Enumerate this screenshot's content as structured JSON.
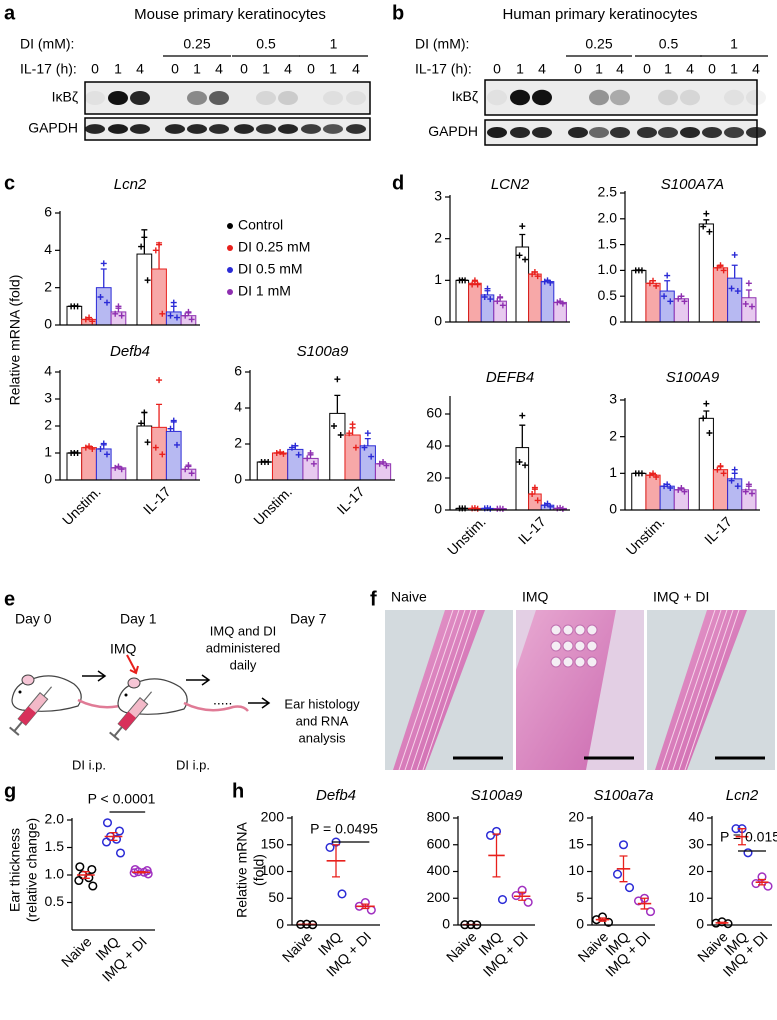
{
  "panel_labels": [
    "a",
    "b",
    "c",
    "d",
    "e",
    "f",
    "g",
    "h"
  ],
  "blots": [
    {
      "title": "Mouse primary keratinocytes",
      "dose_label": "DI (mM):",
      "doses": [
        0.25,
        0.5,
        1
      ],
      "time_label": "IL-17 (h):",
      "times": [
        0,
        1,
        4,
        0,
        1,
        4,
        0,
        1,
        4,
        0,
        1,
        4
      ],
      "proteins": [
        "IκBζ",
        "GAPDH"
      ]
    },
    {
      "title": "Human primary keratinocytes",
      "dose_label": "DI (mM):",
      "doses": [
        0.25,
        0.5,
        1
      ],
      "time_label": "IL-17 (h):",
      "times": [
        0,
        1,
        4,
        0,
        1,
        4,
        0,
        1,
        4,
        0,
        1,
        4
      ],
      "proteins": [
        "IκBζ",
        "GAPDH"
      ]
    }
  ],
  "schematic": {
    "days": [
      "Day 0",
      "Day 1",
      "Day 7"
    ],
    "treatment": "IMQ",
    "daily": [
      "IMQ and DI",
      "administered",
      "daily"
    ],
    "ellipsis": ".....",
    "readout": [
      "Ear histology",
      "and RNA",
      "analysis"
    ],
    "injection": [
      "DI i.p.",
      "DI i.p."
    ]
  },
  "histology": {
    "groups": [
      "Naive",
      "IMQ",
      "IMQ + DI"
    ]
  },
  "chart_data": [
    {
      "type": "bar",
      "title": "Lcn2",
      "ylabel": "Relative mRNA (fold)",
      "legend": true,
      "ylim": [
        0,
        6
      ],
      "yticks": [
        0,
        2,
        4,
        6
      ],
      "series": [
        {
          "name": "Control",
          "color": "#000000",
          "fill": "#ffffff",
          "values": [
            1,
            3.8
          ],
          "errors": [
            0.03,
            1.3
          ],
          "points": [
            [
              1,
              1,
              1
            ],
            [
              4.7,
              4.2,
              2.4
            ]
          ]
        },
        {
          "name": "DI 0.25 mM",
          "color": "#e8201c",
          "fill": "#f7a8a8",
          "values": [
            0.3,
            3.0
          ],
          "errors": [
            0.08,
            1.4
          ],
          "points": [
            [
              0.4,
              0.3,
              0.2
            ],
            [
              4.3,
              4.0,
              0.6
            ]
          ]
        },
        {
          "name": "DI 0.5 mM",
          "color": "#2b2bd6",
          "fill": "#b7b9f2",
          "values": [
            2.0,
            0.7
          ],
          "errors": [
            1.0,
            0.3
          ],
          "points": [
            [
              3.3,
              1.5,
              1.2
            ],
            [
              1.2,
              0.5,
              0.4
            ]
          ]
        },
        {
          "name": "DI 1 mM",
          "color": "#8e2fb0",
          "fill": "#e7c9ef",
          "values": [
            0.7,
            0.5
          ],
          "errors": [
            0.2,
            0.15
          ],
          "points": [
            [
              1.0,
              0.6,
              0.5
            ],
            [
              0.7,
              0.5,
              0.3
            ]
          ]
        }
      ]
    },
    {
      "type": "bar",
      "title": "Defb4",
      "categories": [
        "Unstim.",
        "IL-17"
      ],
      "ylim": [
        0,
        4
      ],
      "yticks": [
        0,
        1,
        2,
        3,
        4
      ],
      "series": [
        {
          "color": "#000000",
          "fill": "#ffffff",
          "values": [
            1,
            2.0
          ],
          "errors": [
            0.03,
            0.5
          ],
          "points": [
            [
              1,
              1,
              1
            ],
            [
              2.5,
              2.1,
              1.4
            ]
          ]
        },
        {
          "color": "#e8201c",
          "fill": "#f7a8a8",
          "values": [
            1.2,
            1.95
          ],
          "errors": [
            0.05,
            0.85
          ],
          "points": [
            [
              1.25,
              1.2,
              1.15
            ],
            [
              3.7,
              1.2,
              0.95
            ]
          ]
        },
        {
          "color": "#2b2bd6",
          "fill": "#b7b9f2",
          "values": [
            1.15,
            1.8
          ],
          "errors": [
            0.15,
            0.35
          ],
          "points": [
            [
              1.35,
              1.15,
              0.95
            ],
            [
              2.2,
              1.9,
              1.3
            ]
          ]
        },
        {
          "color": "#8e2fb0",
          "fill": "#e7c9ef",
          "values": [
            0.45,
            0.4
          ],
          "errors": [
            0.05,
            0.1
          ],
          "points": [
            [
              0.5,
              0.45,
              0.4
            ],
            [
              0.55,
              0.4,
              0.25
            ]
          ]
        }
      ]
    },
    {
      "type": "bar",
      "title": "S100a9",
      "categories": [
        "Unstim.",
        "IL-17"
      ],
      "ylim": [
        0,
        6
      ],
      "yticks": [
        0,
        2,
        4,
        6
      ],
      "series": [
        {
          "color": "#000000",
          "fill": "#ffffff",
          "values": [
            1,
            3.7
          ],
          "errors": [
            0.03,
            1.0
          ],
          "points": [
            [
              1,
              1,
              1
            ],
            [
              5.6,
              3.0,
              2.5
            ]
          ]
        },
        {
          "color": "#e8201c",
          "fill": "#f7a8a8",
          "values": [
            1.5,
            2.5
          ],
          "errors": [
            0.05,
            0.4
          ],
          "points": [
            [
              1.55,
              1.5,
              1.45
            ],
            [
              3.1,
              2.6,
              1.8
            ]
          ]
        },
        {
          "color": "#2b2bd6",
          "fill": "#b7b9f2",
          "values": [
            1.7,
            1.9
          ],
          "errors": [
            0.2,
            0.4
          ],
          "points": [
            [
              1.9,
              1.8,
              1.4
            ],
            [
              2.6,
              1.8,
              1.3
            ]
          ]
        },
        {
          "color": "#8e2fb0",
          "fill": "#e7c9ef",
          "values": [
            1.2,
            0.9
          ],
          "errors": [
            0.2,
            0.1
          ],
          "points": [
            [
              1.5,
              1.2,
              0.9
            ],
            [
              1.0,
              0.9,
              0.8
            ]
          ]
        }
      ]
    },
    {
      "type": "bar",
      "title": "LCN2",
      "ylim": [
        0,
        3
      ],
      "yticks": [
        0,
        1,
        2,
        3
      ],
      "series": [
        {
          "color": "#000000",
          "fill": "#ffffff",
          "values": [
            1,
            1.8
          ],
          "errors": [
            0.02,
            0.3
          ],
          "points": [
            [
              1,
              1,
              1
            ],
            [
              2.3,
              1.6,
              1.5
            ]
          ]
        },
        {
          "color": "#e8201c",
          "fill": "#f7a8a8",
          "values": [
            0.93,
            1.15
          ],
          "errors": [
            0.05,
            0.05
          ],
          "points": [
            [
              1.0,
              0.9,
              0.9
            ],
            [
              1.2,
              1.15,
              1.1
            ]
          ]
        },
        {
          "color": "#2b2bd6",
          "fill": "#b7b9f2",
          "values": [
            0.65,
            0.97
          ],
          "errors": [
            0.1,
            0.03
          ],
          "points": [
            [
              0.8,
              0.6,
              0.55
            ],
            [
              1.0,
              0.97,
              0.94
            ]
          ]
        },
        {
          "color": "#8e2fb0",
          "fill": "#e7c9ef",
          "values": [
            0.5,
            0.47
          ],
          "errors": [
            0.08,
            0.03
          ],
          "points": [
            [
              0.6,
              0.5,
              0.4
            ],
            [
              0.5,
              0.47,
              0.44
            ]
          ]
        }
      ]
    },
    {
      "type": "bar",
      "title": "S100A7A",
      "ylim": [
        0,
        2.5
      ],
      "yticks": [
        0,
        0.5,
        {
          "value": 1,
          "label": "1.0"
        },
        1.5,
        {
          "value": 2,
          "label": "2.0"
        },
        2.5
      ],
      "series": [
        {
          "color": "#000000",
          "fill": "#ffffff",
          "values": [
            1,
            1.9
          ],
          "errors": [
            0.01,
            0.08
          ],
          "points": [
            [
              1,
              1,
              1
            ],
            [
              2.1,
              1.85,
              1.75
            ]
          ]
        },
        {
          "color": "#e8201c",
          "fill": "#f7a8a8",
          "values": [
            0.75,
            1.05
          ],
          "errors": [
            0.05,
            0.03
          ],
          "points": [
            [
              0.8,
              0.75,
              0.7
            ],
            [
              1.1,
              1.05,
              1.0
            ]
          ]
        },
        {
          "color": "#2b2bd6",
          "fill": "#b7b9f2",
          "values": [
            0.6,
            0.85
          ],
          "errors": [
            0.2,
            0.25
          ],
          "points": [
            [
              0.9,
              0.5,
              0.4
            ],
            [
              1.3,
              0.65,
              0.6
            ]
          ]
        },
        {
          "color": "#8e2fb0",
          "fill": "#e7c9ef",
          "values": [
            0.45,
            0.47
          ],
          "errors": [
            0.05,
            0.15
          ],
          "points": [
            [
              0.5,
              0.45,
              0.4
            ],
            [
              0.75,
              0.35,
              0.3
            ]
          ]
        }
      ]
    },
    {
      "type": "bar",
      "title": "DEFB4",
      "categories": [
        "Unstim.",
        "IL-17"
      ],
      "ylim": [
        0,
        70
      ],
      "yticks": [
        0,
        20,
        40,
        60
      ],
      "series": [
        {
          "color": "#000000",
          "fill": "#ffffff",
          "values": [
            1,
            39
          ],
          "errors": [
            0.1,
            14
          ],
          "points": [
            [
              1,
              1,
              1
            ],
            [
              59,
              30,
              28
            ]
          ]
        },
        {
          "color": "#e8201c",
          "fill": "#f7a8a8",
          "values": [
            1,
            10
          ],
          "errors": [
            0.2,
            3
          ],
          "points": [
            [
              1.2,
              1,
              0.8
            ],
            [
              14,
              10,
              6
            ]
          ]
        },
        {
          "color": "#2b2bd6",
          "fill": "#b7b9f2",
          "values": [
            1,
            3
          ],
          "errors": [
            0.2,
            1
          ],
          "points": [
            [
              1.2,
              1,
              0.8
            ],
            [
              4,
              3,
              2
            ]
          ]
        },
        {
          "color": "#8e2fb0",
          "fill": "#e7c9ef",
          "values": [
            0.8,
            1
          ],
          "errors": [
            0.1,
            0.3
          ],
          "points": [
            [
              0.9,
              0.8,
              0.7
            ],
            [
              1.3,
              1,
              0.7
            ]
          ]
        }
      ]
    },
    {
      "type": "bar",
      "title": "S100A9",
      "categories": [
        "Unstim.",
        "IL-17"
      ],
      "ylim": [
        0,
        3
      ],
      "yticks": [
        0,
        1,
        2,
        3
      ],
      "series": [
        {
          "color": "#000000",
          "fill": "#ffffff",
          "values": [
            1,
            2.5
          ],
          "errors": [
            0.01,
            0.2
          ],
          "points": [
            [
              1,
              1,
              1
            ],
            [
              2.9,
              2.5,
              2.1
            ]
          ]
        },
        {
          "color": "#e8201c",
          "fill": "#f7a8a8",
          "values": [
            0.95,
            1.1
          ],
          "errors": [
            0.03,
            0.08
          ],
          "points": [
            [
              1.0,
              0.95,
              0.9
            ],
            [
              1.2,
              1.1,
              1.0
            ]
          ]
        },
        {
          "color": "#2b2bd6",
          "fill": "#b7b9f2",
          "values": [
            0.65,
            0.85
          ],
          "errors": [
            0.05,
            0.15
          ],
          "points": [
            [
              0.7,
              0.65,
              0.6
            ],
            [
              1.1,
              0.8,
              0.65
            ]
          ]
        },
        {
          "color": "#8e2fb0",
          "fill": "#e7c9ef",
          "values": [
            0.55,
            0.55
          ],
          "errors": [
            0.04,
            0.1
          ],
          "points": [
            [
              0.6,
              0.55,
              0.5
            ],
            [
              0.7,
              0.5,
              0.45
            ]
          ]
        }
      ]
    },
    {
      "type": "dot",
      "ylabel": [
        "Ear thickness",
        "(relative change)"
      ],
      "categories": [
        "Naive",
        "IMQ",
        "IMQ + DI"
      ],
      "colors": [
        "#000000",
        "#2b2bd6",
        "#a030c0"
      ],
      "mean_color": "#e8201c",
      "values": [
        1.0,
        1.7,
        1.05
      ],
      "errors": [
        0.06,
        0.07,
        0.01
      ],
      "points": [
        [
          1.15,
          1.1,
          1.0,
          0.95,
          0.9,
          0.8
        ],
        [
          1.95,
          1.8,
          1.7,
          1.65,
          1.6,
          1.4
        ],
        [
          1.1,
          1.08,
          1.06,
          1.05,
          1.04,
          1.02
        ]
      ],
      "ylim": [
        0,
        2
      ],
      "yticks": [
        0.5,
        {
          "value": 1,
          "label": "1.0"
        },
        1.5,
        {
          "value": 2,
          "label": "2.0"
        }
      ],
      "annotation": "P < 0.0001"
    },
    {
      "type": "dot",
      "title": "Defb4",
      "ylabel": [
        "Relative mRNA",
        "(fold)"
      ],
      "categories": [
        "Naive",
        "IMQ",
        "IMQ + DI"
      ],
      "colors": [
        "#000000",
        "#2b2bd6",
        "#a030c0"
      ],
      "mean_color": "#e8201c",
      "values": [
        1,
        120,
        35
      ],
      "errors": [
        0.2,
        30,
        4
      ],
      "points": [
        [
          1.5,
          1,
          0.5
        ],
        [
          155,
          145,
          58
        ],
        [
          42,
          35,
          28
        ]
      ],
      "ylim": [
        0,
        200
      ],
      "yticks": [
        0,
        50,
        100,
        150,
        200
      ],
      "annotation": "P = 0.0495"
    },
    {
      "type": "dot",
      "title": "S100a9",
      "categories": [
        "Naive",
        "IMQ",
        "IMQ + DI"
      ],
      "colors": [
        "#000000",
        "#2b2bd6",
        "#a030c0"
      ],
      "mean_color": "#e8201c",
      "values": [
        2,
        520,
        215
      ],
      "errors": [
        0.5,
        160,
        30
      ],
      "points": [
        [
          3,
          2,
          1
        ],
        [
          700,
          670,
          190
        ],
        [
          260,
          220,
          170
        ]
      ],
      "ylim": [
        0,
        800
      ],
      "yticks": [
        0,
        200,
        400,
        600,
        800
      ]
    },
    {
      "type": "dot",
      "title": "S100a7a",
      "categories": [
        "Naive",
        "IMQ",
        "IMQ + DI"
      ],
      "colors": [
        "#000000",
        "#2b2bd6",
        "#a030c0"
      ],
      "mean_color": "#e8201c",
      "values": [
        1,
        10.5,
        4
      ],
      "errors": [
        0.3,
        2.4,
        1
      ],
      "points": [
        [
          1.5,
          1,
          0.5
        ],
        [
          15,
          9.5,
          7
        ],
        [
          5,
          4.5,
          2.5
        ]
      ],
      "ylim": [
        0,
        20
      ],
      "yticks": [
        0,
        5,
        10,
        15,
        20
      ]
    },
    {
      "type": "dot",
      "title": "Lcn2",
      "categories": [
        "Naive",
        "IMQ",
        "IMQ + DI"
      ],
      "colors": [
        "#000000",
        "#2b2bd6",
        "#a030c0"
      ],
      "mean_color": "#e8201c",
      "values": [
        0.8,
        33,
        16
      ],
      "errors": [
        0.2,
        3,
        1
      ],
      "points": [
        [
          1.2,
          0.7,
          0.5
        ],
        [
          36,
          36,
          27
        ],
        [
          18,
          15.5,
          14.5
        ]
      ],
      "ylim": [
        0,
        40
      ],
      "yticks": [
        0,
        10,
        20,
        30,
        40
      ],
      "annotation": "P = 0.015"
    }
  ]
}
